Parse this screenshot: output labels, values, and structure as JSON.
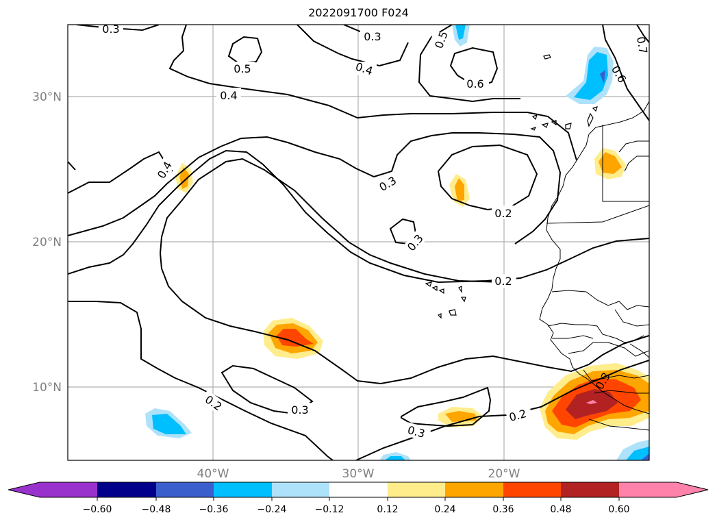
{
  "title": "2022091700 F024",
  "map": {
    "lat_labels": [
      "30°N",
      "20°N",
      "10°N"
    ],
    "lon_labels": [
      "40°W",
      "30°W",
      "20°W"
    ],
    "contour_labels": [
      "0.3",
      "0.3",
      "0.5",
      "0.5",
      "0.4",
      "0.6",
      "0.4",
      "0.6",
      "0.7",
      "0.4",
      "0.3",
      "0.2",
      "0.3",
      "0.2",
      "0.2",
      "0.3",
      "0.3",
      "0.2",
      "0.3"
    ]
  },
  "colorbar": {
    "tick_labels": [
      "−0.60",
      "−0.48",
      "−0.36",
      "−0.24",
      "−0.12",
      "0.12",
      "0.24",
      "0.36",
      "0.48",
      "0.60"
    ],
    "colors": [
      "#9932cc",
      "#00008b",
      "#3a5fcd",
      "#00bfff",
      "#aee2fa",
      "#ffffff",
      "#ffec8b",
      "#ffa500",
      "#ff4500",
      "#b22222",
      "#ff82ab"
    ]
  }
}
